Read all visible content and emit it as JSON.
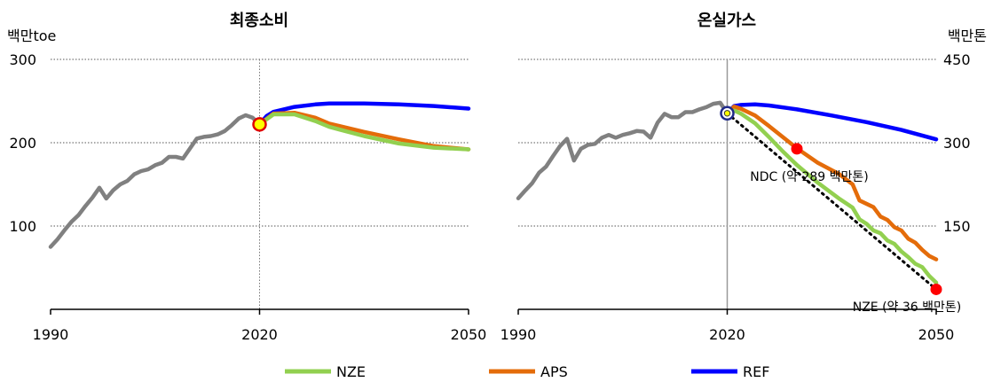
{
  "chart_data": [
    {
      "type": "line",
      "title": "최종소비",
      "y_unit": "백만toe",
      "y_unit_side": "left",
      "xlim": [
        1990,
        2050
      ],
      "ylim": [
        0,
        300
      ],
      "x_ticks": [
        "1990",
        "2020",
        "2050"
      ],
      "y_ticks": [
        "100",
        "200",
        "300"
      ],
      "y_tick_values": [
        100,
        200,
        300
      ],
      "grid": "dotted horizontal",
      "reference_line_year": 2020,
      "marker": {
        "x": 2020,
        "y": 222,
        "color": "#ffff00"
      },
      "series": [
        {
          "key": "history",
          "color": "#808080",
          "x": [
            1990,
            1991,
            1992,
            1993,
            1994,
            1995,
            1996,
            1997,
            1998,
            1999,
            2000,
            2001,
            2002,
            2003,
            2004,
            2005,
            2006,
            2007,
            2008,
            2009,
            2010,
            2011,
            2012,
            2013,
            2014,
            2015,
            2016,
            2017,
            2018,
            2019,
            2020
          ],
          "y": [
            75,
            84,
            95,
            105,
            113,
            124,
            134,
            146,
            133,
            143,
            150,
            154,
            162,
            166,
            168,
            173,
            176,
            183,
            183,
            181,
            193,
            205,
            207,
            208,
            210,
            214,
            221,
            229,
            233,
            230,
            222
          ]
        },
        {
          "key": "REF",
          "name": "REF",
          "color": "#0000ff",
          "x": [
            2020,
            2021,
            2022,
            2025,
            2028,
            2030,
            2035,
            2040,
            2045,
            2050
          ],
          "y": [
            222,
            232,
            237,
            243,
            246,
            247,
            247,
            246,
            244,
            241
          ]
        },
        {
          "key": "APS",
          "name": "APS",
          "color": "#e46c0a",
          "x": [
            2020,
            2022,
            2025,
            2028,
            2030,
            2035,
            2040,
            2045,
            2050
          ],
          "y": [
            222,
            235,
            236,
            230,
            223,
            213,
            204,
            196,
            192
          ]
        },
        {
          "key": "NZE",
          "name": "NZE",
          "color": "#92d050",
          "x": [
            2020,
            2022,
            2025,
            2028,
            2030,
            2035,
            2040,
            2045,
            2050
          ],
          "y": [
            222,
            234,
            234,
            226,
            219,
            208,
            199,
            194,
            192
          ]
        }
      ]
    },
    {
      "type": "line",
      "title": "온실가스",
      "y_unit": "백만톤",
      "y_unit_side": "right",
      "xlim": [
        1990,
        2050
      ],
      "ylim": [
        0,
        450
      ],
      "x_ticks": [
        "1990",
        "2020",
        "2050"
      ],
      "y_ticks": [
        "150",
        "300",
        "450"
      ],
      "y_tick_values": [
        150,
        300,
        450
      ],
      "grid": "dotted horizontal",
      "reference_line_year": 2020,
      "marker": {
        "x": 2020,
        "y": 353,
        "color": "#ffff00"
      },
      "series": [
        {
          "key": "history",
          "color": "#808080",
          "x": [
            1990,
            1991,
            1992,
            1993,
            1994,
            1995,
            1996,
            1997,
            1998,
            1999,
            2000,
            2001,
            2002,
            2003,
            2004,
            2005,
            2006,
            2007,
            2008,
            2009,
            2010,
            2011,
            2012,
            2013,
            2014,
            2015,
            2016,
            2017,
            2018,
            2019,
            2020
          ],
          "y": [
            200,
            214,
            227,
            246,
            257,
            276,
            294,
            307,
            268,
            289,
            296,
            298,
            309,
            314,
            309,
            314,
            317,
            321,
            320,
            309,
            336,
            352,
            346,
            346,
            355,
            355,
            360,
            364,
            370,
            372,
            353
          ]
        },
        {
          "key": "REF",
          "name": "REF",
          "color": "#0000ff",
          "x": [
            2020,
            2021,
            2022,
            2024,
            2026,
            2030,
            2035,
            2040,
            2045,
            2050
          ],
          "y": [
            353,
            366,
            368,
            369,
            367,
            360,
            349,
            337,
            323,
            306
          ]
        },
        {
          "key": "APS",
          "name": "APS",
          "color": "#e46c0a",
          "x": [
            2020,
            2021,
            2022,
            2024,
            2026,
            2028,
            2030,
            2033,
            2036,
            2038,
            2039,
            2041,
            2042,
            2043,
            2044,
            2045,
            2046,
            2047,
            2048,
            2049,
            2050
          ],
          "y": [
            353,
            365,
            361,
            349,
            330,
            310,
            290,
            264,
            244,
            225,
            196,
            184,
            167,
            161,
            148,
            142,
            127,
            120,
            107,
            96,
            90
          ]
        },
        {
          "key": "NZE",
          "name": "NZE",
          "color": "#92d050",
          "x": [
            2020,
            2021,
            2022,
            2024,
            2026,
            2028,
            2030,
            2033,
            2036,
            2038,
            2039,
            2040,
            2041,
            2042,
            2043,
            2044,
            2045,
            2046,
            2047,
            2048,
            2049,
            2050
          ],
          "y": [
            353,
            358,
            352,
            335,
            310,
            284,
            260,
            228,
            200,
            183,
            162,
            154,
            142,
            137,
            124,
            118,
            104,
            94,
            82,
            76,
            60,
            48
          ]
        }
      ],
      "points": [
        {
          "x": 2030,
          "y": 289,
          "color": "#ff0000",
          "label": "NDC (약 289 백만톤)"
        },
        {
          "x": 2050,
          "y": 36,
          "color": "#ff0000",
          "label": "NZE (약 36 백만톤)"
        }
      ],
      "target_line": {
        "from": [
          2020,
          353
        ],
        "to": [
          2050,
          36
        ],
        "style": "dotted",
        "color": "#000000"
      }
    }
  ],
  "legend": {
    "position": "bottom",
    "items": [
      {
        "label": "NZE",
        "color": "#92d050"
      },
      {
        "label": "APS",
        "color": "#e46c0a"
      },
      {
        "label": "REF",
        "color": "#0000ff"
      }
    ]
  }
}
